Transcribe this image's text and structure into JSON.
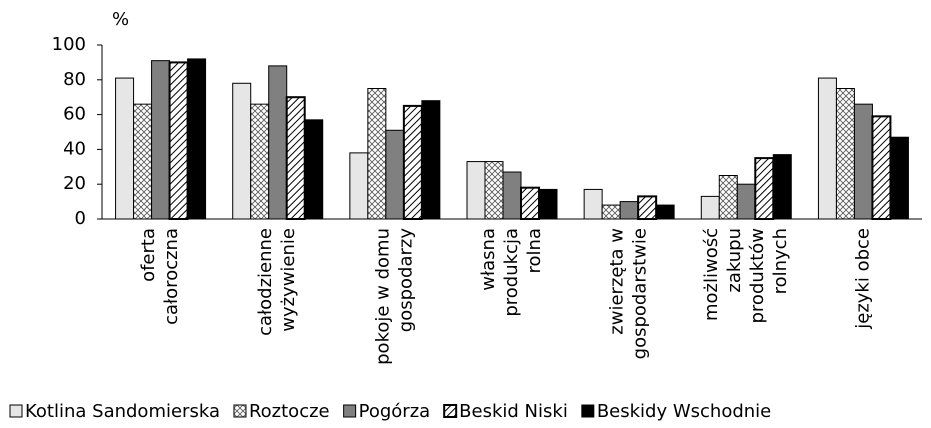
{
  "chart_data": {
    "type": "bar",
    "y_label": "%",
    "categories": [
      [
        "oferta",
        "całoroczna"
      ],
      [
        "całodzienne",
        "wyżywienie"
      ],
      [
        "pokoje w domu",
        "gospodarzy"
      ],
      [
        "własna",
        "produkcja",
        "rolna"
      ],
      [
        "zwierzęta w",
        "gospodarstwie"
      ],
      [
        "możliwość",
        "zakupu",
        "produktów",
        "rolnych"
      ],
      [
        "języki obce"
      ]
    ],
    "series": [
      {
        "name": "Kotlina Sandomierska",
        "color": "#e6e6e6",
        "pattern": "solid",
        "values": [
          81,
          78,
          38,
          33,
          17,
          13,
          81
        ]
      },
      {
        "name": "Roztocze",
        "color": "#ffffff",
        "pattern": "crosshatch",
        "values": [
          66,
          66,
          75,
          33,
          8,
          25,
          75
        ]
      },
      {
        "name": "Pogórza",
        "color": "#808080",
        "pattern": "solid",
        "values": [
          91,
          88,
          51,
          27,
          10,
          20,
          66
        ]
      },
      {
        "name": "Beskid Niski",
        "color": "#ffffff",
        "pattern": "diagonal",
        "values": [
          90,
          70,
          65,
          18,
          13,
          35,
          59
        ]
      },
      {
        "name": "Beskidy Wschodnie",
        "color": "#000000",
        "pattern": "solid",
        "values": [
          92,
          57,
          68,
          17,
          8,
          37,
          47
        ]
      }
    ],
    "ylim": [
      0,
      100
    ],
    "yticks": [
      0,
      20,
      40,
      60,
      80,
      100
    ],
    "grid": false,
    "legend": "bottom"
  }
}
